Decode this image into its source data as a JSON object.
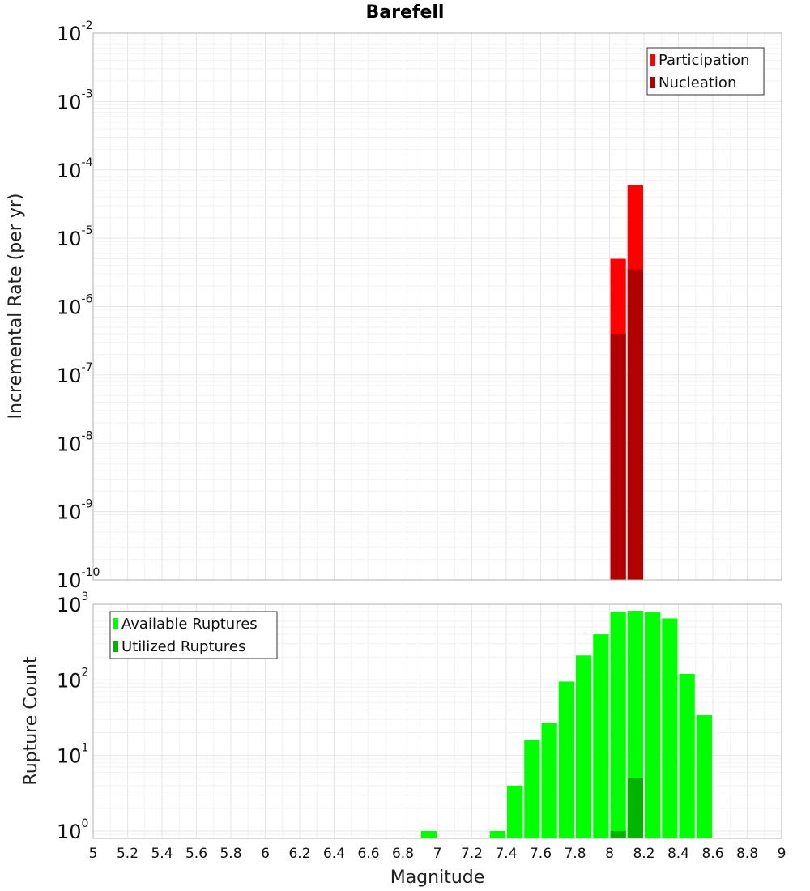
{
  "chart_data": [
    {
      "type": "bar",
      "title": "Barefell",
      "ylabel": "Incremental Rate (per yr)",
      "xlabel": "",
      "xlim": [
        5,
        9
      ],
      "ylim": [
        1e-10,
        0.01
      ],
      "yscale": "log",
      "ytick_exponents": [
        "-2",
        "-3",
        "-4",
        "-5",
        "-6",
        "-7",
        "-8",
        "-9",
        "-10"
      ],
      "legend_position": "top-right",
      "grid": true,
      "bin_width": 0.1,
      "series": [
        {
          "name": "Participation",
          "color": "#ff0000",
          "x": [
            8.05,
            8.15
          ],
          "values": [
            5e-06,
            6e-05
          ]
        },
        {
          "name": "Nucleation",
          "color": "#b20000",
          "x": [
            8.05,
            8.15
          ],
          "values": [
            4e-07,
            3.5e-06
          ]
        }
      ]
    },
    {
      "type": "bar",
      "title": "",
      "ylabel": "Rupture Count",
      "xlabel": "Magnitude",
      "xlim": [
        5,
        9
      ],
      "ylim": [
        0.8,
        1000
      ],
      "yscale": "log",
      "ytick_exponents": [
        "3",
        "2",
        "1",
        "0"
      ],
      "xticks": [
        "5",
        "5.2",
        "5.4",
        "5.6",
        "5.8",
        "6",
        "6.2",
        "6.4",
        "6.6",
        "6.8",
        "7",
        "7.2",
        "7.4",
        "7.6",
        "7.8",
        "8",
        "8.2",
        "8.4",
        "8.6",
        "8.8",
        "9"
      ],
      "legend_position": "top-left",
      "grid": true,
      "bin_width": 0.1,
      "series": [
        {
          "name": "Available Ruptures",
          "color": "#00ff00",
          "x": [
            6.95,
            7.35,
            7.45,
            7.55,
            7.65,
            7.75,
            7.85,
            7.95,
            8.05,
            8.15,
            8.25,
            8.35,
            8.45,
            8.55
          ],
          "values": [
            1,
            1,
            4,
            16,
            27,
            95,
            210,
            400,
            800,
            820,
            780,
            650,
            120,
            34
          ]
        },
        {
          "name": "Utilized Ruptures",
          "color": "#00b400",
          "x": [
            8.05,
            8.15
          ],
          "values": [
            1,
            5
          ]
        }
      ]
    }
  ]
}
